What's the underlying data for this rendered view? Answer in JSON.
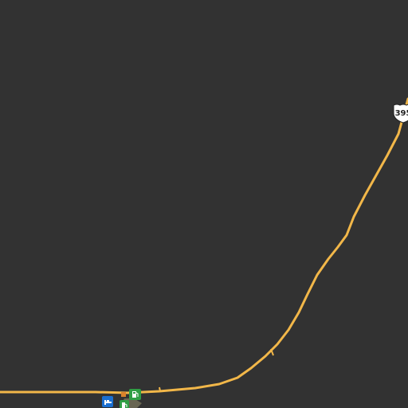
{
  "map": {
    "background_color": "#323232",
    "road_color": "#f2b749",
    "route_shield": {
      "label": "395",
      "type": "us-highway-shield",
      "icon": "us-route-shield-icon"
    },
    "pois": [
      {
        "name": "lodging",
        "icon": "bed-icon",
        "color": "#1a6fd1"
      },
      {
        "name": "fuel-station",
        "icon": "fuel-pump-icon",
        "color": "#2f9e44"
      },
      {
        "name": "fuel-station",
        "icon": "fuel-pump-icon",
        "color": "#2f9e44"
      }
    ]
  }
}
